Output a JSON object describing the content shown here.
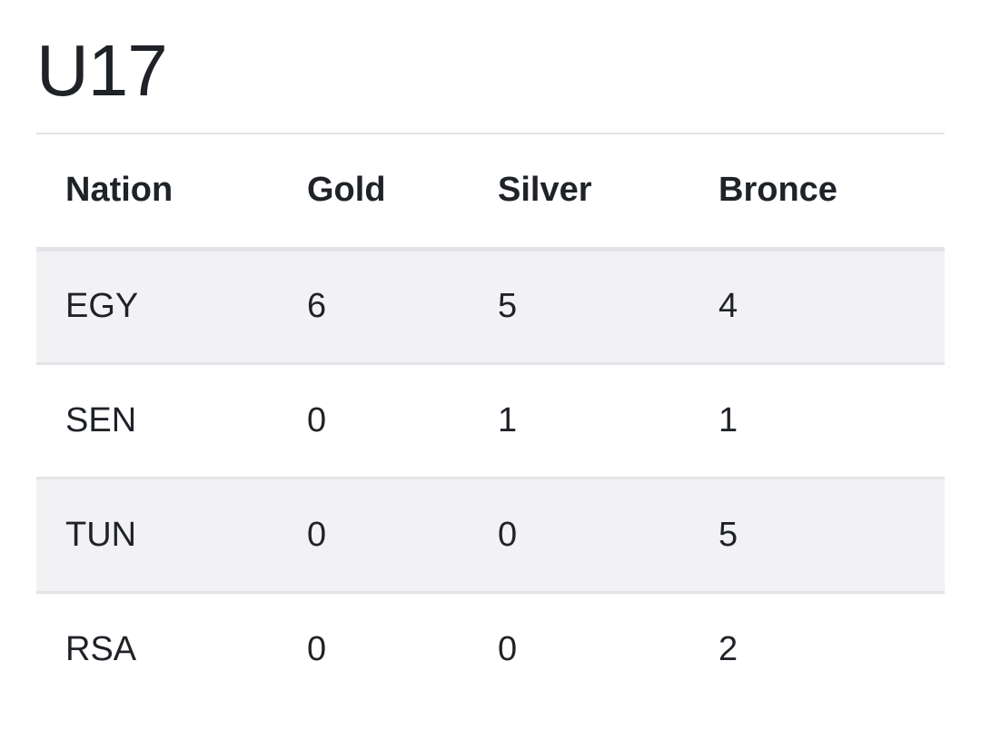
{
  "title": "U17",
  "table": {
    "headers": {
      "nation": "Nation",
      "gold": "Gold",
      "silver": "Silver",
      "bronze": "Bronce"
    },
    "rows": [
      {
        "nation": "EGY",
        "gold": "6",
        "silver": "5",
        "bronze": "4"
      },
      {
        "nation": "SEN",
        "gold": "0",
        "silver": "1",
        "bronze": "1"
      },
      {
        "nation": "TUN",
        "gold": "0",
        "silver": "0",
        "bronze": "5"
      },
      {
        "nation": "RSA",
        "gold": "0",
        "silver": "0",
        "bronze": "2"
      }
    ]
  },
  "colors": {
    "text": "#1f2328",
    "stripe": "#f2f2f4",
    "rule": "#e2e4e8"
  }
}
